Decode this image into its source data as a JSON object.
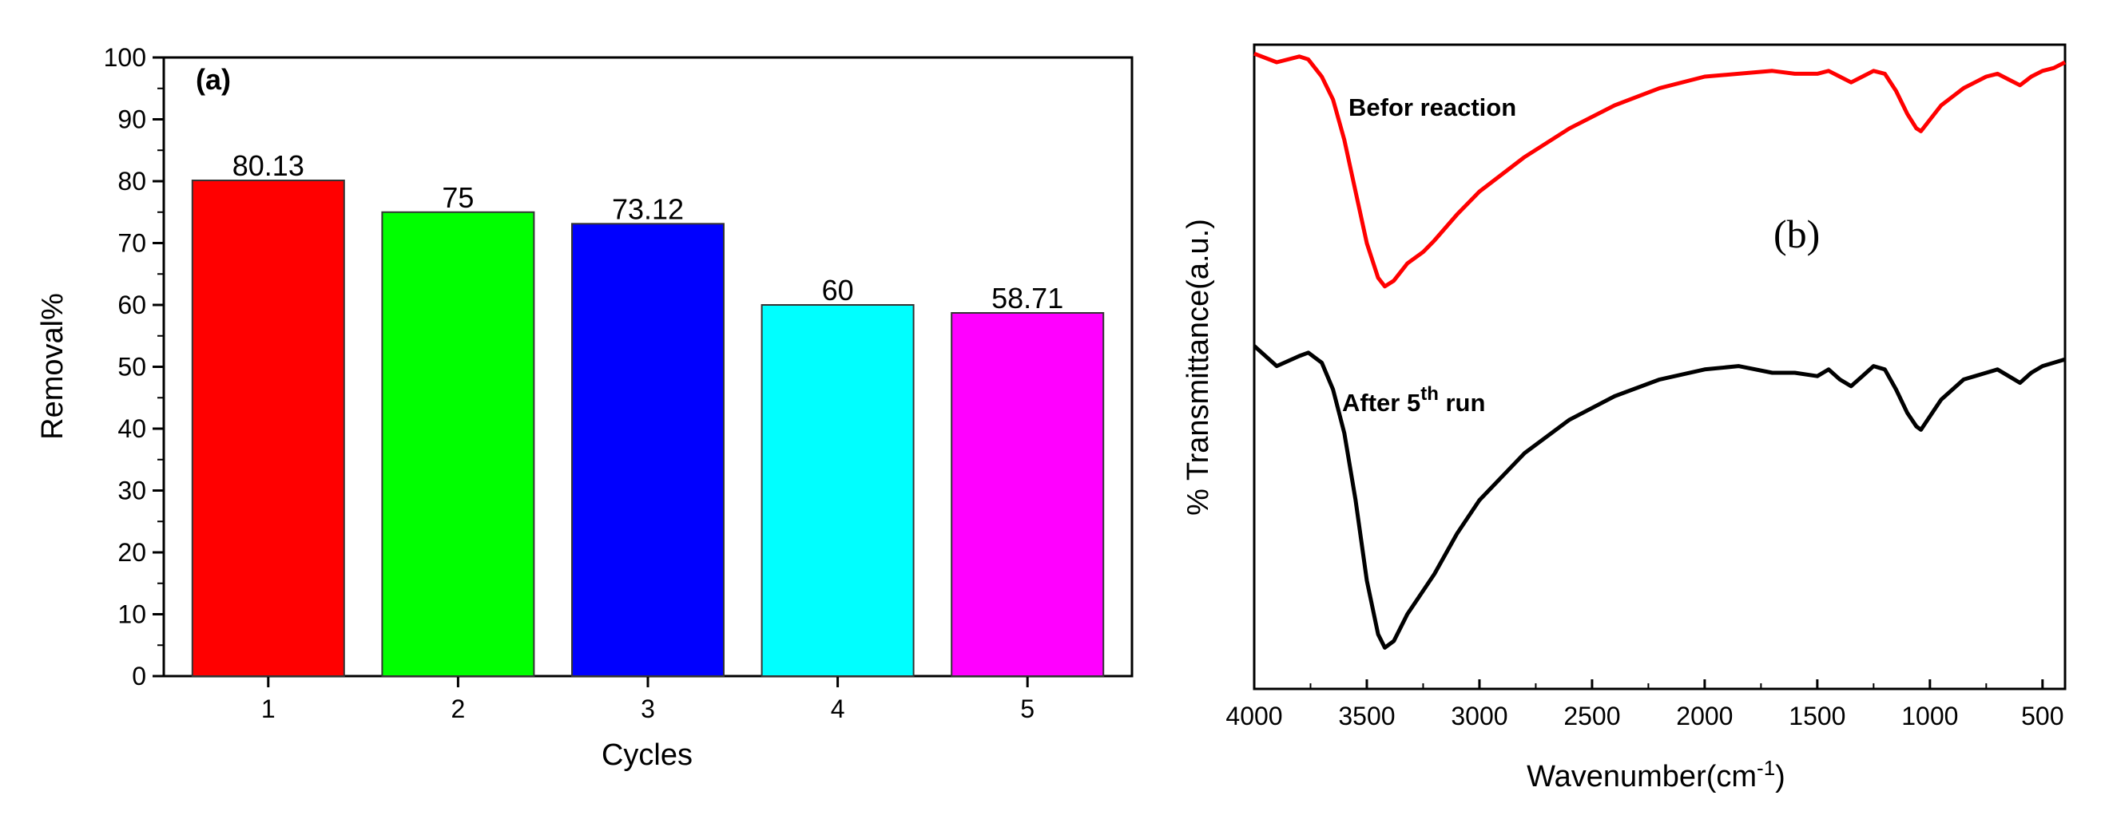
{
  "chart_data": [
    {
      "panel": "(a)",
      "type": "bar",
      "categories": [
        "1",
        "2",
        "3",
        "4",
        "5"
      ],
      "values": [
        80.13,
        75,
        73.12,
        60,
        58.71
      ],
      "value_labels": [
        "80.13",
        "75",
        "73.12",
        "60",
        "58.71"
      ],
      "colors": [
        "#ff0000",
        "#00ff00",
        "#0000ff",
        "#00ffff",
        "#ff00ff"
      ],
      "xlabel": "Cycles",
      "ylabel": "Removal%",
      "ylim": [
        0,
        100
      ],
      "yticks": [
        "0",
        "10",
        "20",
        "30",
        "40",
        "50",
        "60",
        "70",
        "80",
        "90",
        "100"
      ]
    },
    {
      "panel": "(b)",
      "type": "line",
      "xlabel_main": "Wavenumber(cm",
      "xlabel_sup": "-1",
      "xlabel_end": ")",
      "ylabel": "% Transmittance(a.u.)",
      "xlim": [
        4000,
        400
      ],
      "xticks": [
        "4000",
        "3500",
        "3000",
        "2500",
        "2000",
        "1500",
        "1000",
        "500"
      ],
      "series": [
        {
          "name": "Befor reaction",
          "color": "#ff0000",
          "x": [
            4000,
            3900,
            3800,
            3760,
            3700,
            3650,
            3600,
            3550,
            3500,
            3450,
            3420,
            3380,
            3320,
            3250,
            3200,
            3100,
            3000,
            2800,
            2600,
            2400,
            2200,
            2000,
            1850,
            1700,
            1600,
            1500,
            1450,
            1400,
            1350,
            1300,
            1250,
            1200,
            1150,
            1100,
            1060,
            1040,
            1000,
            950,
            900,
            850,
            800,
            750,
            700,
            650,
            600,
            550,
            500,
            450,
            400
          ],
          "y": [
            0.98,
            0.95,
            0.97,
            0.96,
            0.9,
            0.82,
            0.68,
            0.5,
            0.32,
            0.2,
            0.17,
            0.19,
            0.25,
            0.29,
            0.33,
            0.42,
            0.5,
            0.62,
            0.72,
            0.8,
            0.86,
            0.9,
            0.91,
            0.92,
            0.91,
            0.91,
            0.92,
            0.9,
            0.88,
            0.9,
            0.92,
            0.91,
            0.85,
            0.77,
            0.72,
            0.71,
            0.75,
            0.8,
            0.83,
            0.86,
            0.88,
            0.9,
            0.91,
            0.89,
            0.87,
            0.9,
            0.92,
            0.93,
            0.95
          ],
          "ymin": 0.0,
          "ymax": 1.0
        },
        {
          "name": "After 5th run",
          "label_main": "After 5",
          "label_sup": "th",
          "label_end": " run",
          "color": "#000000",
          "x": [
            4000,
            3900,
            3800,
            3760,
            3700,
            3650,
            3600,
            3550,
            3500,
            3450,
            3420,
            3380,
            3320,
            3250,
            3200,
            3100,
            3000,
            2800,
            2600,
            2400,
            2200,
            2000,
            1850,
            1700,
            1600,
            1500,
            1450,
            1400,
            1350,
            1300,
            1250,
            1200,
            1150,
            1100,
            1060,
            1040,
            1000,
            950,
            900,
            850,
            800,
            750,
            700,
            650,
            600,
            550,
            500,
            450,
            400
          ],
          "y": [
            0.98,
            0.92,
            0.95,
            0.96,
            0.93,
            0.85,
            0.72,
            0.52,
            0.28,
            0.12,
            0.08,
            0.1,
            0.18,
            0.25,
            0.3,
            0.42,
            0.52,
            0.66,
            0.76,
            0.83,
            0.88,
            0.91,
            0.92,
            0.9,
            0.9,
            0.89,
            0.91,
            0.88,
            0.86,
            0.89,
            0.92,
            0.91,
            0.85,
            0.78,
            0.74,
            0.73,
            0.77,
            0.82,
            0.85,
            0.88,
            0.89,
            0.9,
            0.91,
            0.89,
            0.87,
            0.9,
            0.92,
            0.93,
            0.94
          ],
          "ymin": 0.0,
          "ymax": 1.0
        }
      ]
    }
  ]
}
